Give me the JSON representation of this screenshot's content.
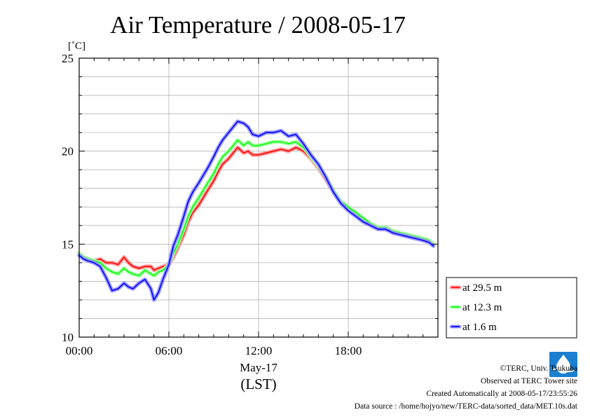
{
  "chart_data": {
    "type": "line",
    "title": "Air Temperature / 2008-05-17",
    "yunit": "[˚C]",
    "ylim": [
      10,
      25
    ],
    "xlim": [
      0,
      24
    ],
    "yticks": [
      10,
      15,
      20,
      25
    ],
    "xticks": [
      {
        "value": 0,
        "label": "00:00"
      },
      {
        "value": 6,
        "label": "06:00"
      },
      {
        "value": 12,
        "label": "12:00"
      },
      {
        "value": 18,
        "label": "18:00"
      }
    ],
    "xlabel_date": "May-17",
    "xlabel": "(LST)",
    "grid": true,
    "legend_position": "right",
    "series": [
      {
        "name": "at 29.5 m",
        "color": "#ff0000",
        "halo": "#ff9a9a",
        "x": [
          0,
          0.3,
          0.6,
          1,
          1.4,
          1.8,
          2.2,
          2.6,
          3,
          3.3,
          3.6,
          4,
          4.4,
          4.8,
          5,
          5.3,
          5.6,
          6,
          6.3,
          6.6,
          7,
          7.3,
          7.6,
          8,
          8.3,
          8.6,
          9,
          9.3,
          9.6,
          10,
          10.3,
          10.6,
          11,
          11.3,
          11.6,
          12,
          12.5,
          13,
          13.5,
          14,
          14.5,
          15,
          15.5,
          16,
          16.5,
          17,
          17.5,
          18,
          18.5,
          19,
          19.5,
          20,
          20.5,
          21,
          21.5,
          22,
          22.5,
          23,
          23.4,
          23.7
        ],
        "y": [
          14.5,
          14.3,
          14.2,
          14.1,
          14.2,
          14.0,
          14.0,
          13.9,
          14.3,
          14.0,
          13.8,
          13.7,
          13.8,
          13.8,
          13.6,
          13.7,
          13.8,
          13.9,
          14.3,
          14.8,
          15.5,
          16.2,
          16.7,
          17.1,
          17.5,
          17.9,
          18.4,
          18.9,
          19.3,
          19.6,
          19.9,
          20.2,
          19.9,
          20.0,
          19.8,
          19.8,
          19.9,
          20.0,
          20.1,
          20.0,
          20.2,
          20.0,
          19.6,
          19.1,
          18.5,
          17.8,
          17.2,
          16.9,
          16.6,
          16.3,
          16.0,
          15.8,
          15.8,
          15.6,
          15.5,
          15.4,
          15.3,
          15.2,
          15.1,
          15.0
        ]
      },
      {
        "name": "at 12.3 m",
        "color": "#00ff00",
        "halo": "#a8ffa8",
        "x": [
          0,
          0.3,
          0.6,
          1,
          1.4,
          1.8,
          2.2,
          2.6,
          3,
          3.3,
          3.6,
          4,
          4.4,
          4.8,
          5,
          5.3,
          5.6,
          6,
          6.3,
          6.6,
          7,
          7.3,
          7.6,
          8,
          8.3,
          8.6,
          9,
          9.3,
          9.6,
          10,
          10.3,
          10.6,
          11,
          11.3,
          11.6,
          12,
          12.5,
          13,
          13.5,
          14,
          14.5,
          15,
          15.5,
          16,
          16.5,
          17,
          17.5,
          18,
          18.5,
          19,
          19.5,
          20,
          20.5,
          21,
          21.5,
          22,
          22.5,
          23,
          23.4,
          23.7
        ],
        "y": [
          14.5,
          14.3,
          14.2,
          14.1,
          14.0,
          13.7,
          13.5,
          13.4,
          13.7,
          13.5,
          13.4,
          13.3,
          13.6,
          13.4,
          13.3,
          13.5,
          13.6,
          13.9,
          14.5,
          15.0,
          15.8,
          16.5,
          17.0,
          17.5,
          17.9,
          18.3,
          18.8,
          19.3,
          19.7,
          20.0,
          20.3,
          20.6,
          20.3,
          20.5,
          20.3,
          20.3,
          20.4,
          20.5,
          20.5,
          20.4,
          20.5,
          20.2,
          19.7,
          19.2,
          18.6,
          17.9,
          17.3,
          17.0,
          16.7,
          16.4,
          16.1,
          15.9,
          15.9,
          15.7,
          15.6,
          15.5,
          15.4,
          15.3,
          15.2,
          15.0
        ]
      },
      {
        "name": "at 1.6 m",
        "color": "#0000ff",
        "halo": "#9a9aff",
        "x": [
          0,
          0.3,
          0.6,
          1,
          1.4,
          1.8,
          2.2,
          2.6,
          3,
          3.3,
          3.6,
          4,
          4.4,
          4.8,
          5,
          5.3,
          5.6,
          6,
          6.3,
          6.6,
          7,
          7.3,
          7.6,
          8,
          8.3,
          8.6,
          9,
          9.3,
          9.6,
          10,
          10.3,
          10.6,
          11,
          11.3,
          11.6,
          12,
          12.5,
          13,
          13.5,
          14,
          14.5,
          15,
          15.5,
          16,
          16.5,
          17,
          17.5,
          18,
          18.5,
          19,
          19.5,
          20,
          20.5,
          21,
          21.5,
          22,
          22.5,
          23,
          23.4,
          23.7
        ],
        "y": [
          14.4,
          14.2,
          14.1,
          14.0,
          13.8,
          13.2,
          12.5,
          12.6,
          12.9,
          12.7,
          12.6,
          12.9,
          13.1,
          12.6,
          12.0,
          12.4,
          13.1,
          13.9,
          14.9,
          15.5,
          16.5,
          17.3,
          17.8,
          18.3,
          18.7,
          19.1,
          19.7,
          20.2,
          20.6,
          21.0,
          21.3,
          21.6,
          21.5,
          21.3,
          20.9,
          20.8,
          21.0,
          21.0,
          21.1,
          20.8,
          20.9,
          20.4,
          19.8,
          19.3,
          18.6,
          17.8,
          17.2,
          16.8,
          16.5,
          16.2,
          16.0,
          15.8,
          15.8,
          15.6,
          15.5,
          15.4,
          15.3,
          15.2,
          15.1,
          14.9
        ]
      }
    ]
  },
  "footer": {
    "copyright": "©TERC, Univ. Tsukuba",
    "observed": "Observed at TERC Tower site",
    "created": "Created Automatically at 2008-05-17/23:55:26",
    "source": "Data source : /home/hojyo/new/TERC-data/sorted_data/MET.10s.dat"
  },
  "logo": {
    "text": "TERC",
    "color": "#1a7fd0"
  }
}
